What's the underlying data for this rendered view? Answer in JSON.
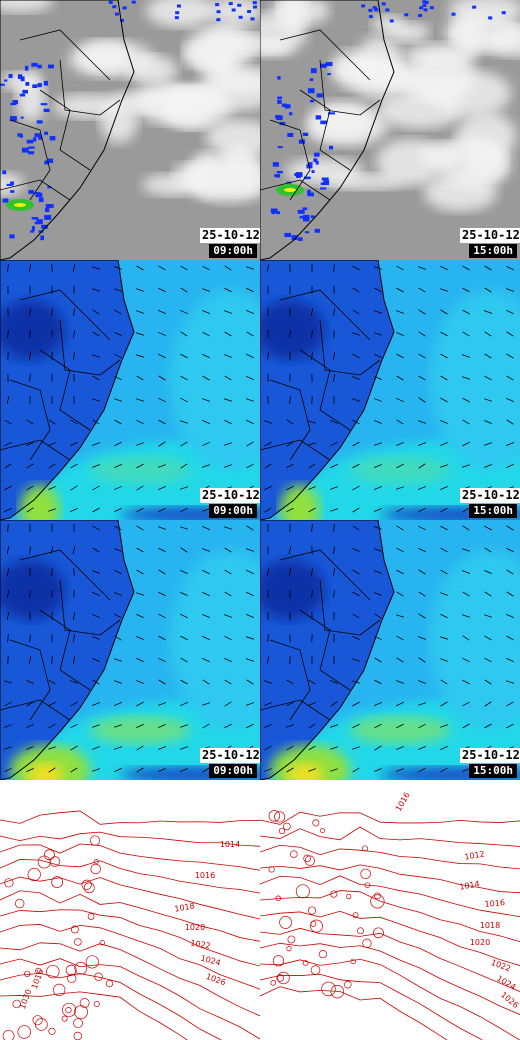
{
  "panels": [
    {
      "date": "25-10-12",
      "time": "09:00h"
    },
    {
      "date": "25-10-12",
      "time": "15:00h"
    },
    {
      "date": "25-10-12",
      "time": "09:00h"
    },
    {
      "date": "25-10-12",
      "time": "15:00h"
    },
    {
      "date": "25-10-12",
      "time": "09:00h"
    },
    {
      "date": "25-10-12",
      "time": "15:00h"
    }
  ],
  "isobars": [
    {
      "labels": [
        "1014",
        "1016",
        "1018",
        "1020",
        "1022",
        "1024",
        "1026",
        "1030",
        "1016"
      ]
    },
    {
      "labels": [
        "1016",
        "1012",
        "1014",
        "1016",
        "1018",
        "1020",
        "1022",
        "1024",
        "1026"
      ]
    }
  ]
}
